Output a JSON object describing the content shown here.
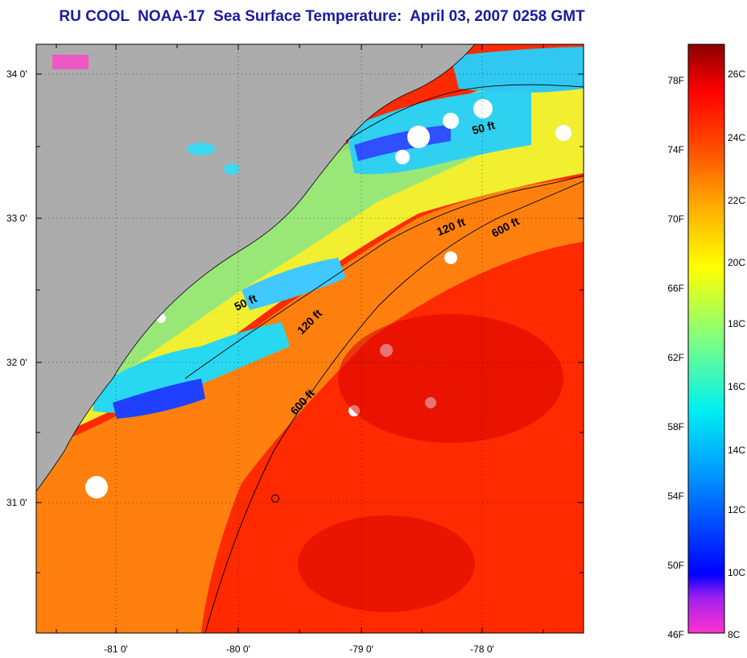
{
  "title": "RU COOL  NOAA-17  Sea Surface Temperature:  April 03, 2007 0258 GMT",
  "map": {
    "lat_ticks": [
      "34 0'",
      "33 0'",
      "32 0'",
      "31 0'"
    ],
    "lon_ticks": [
      "-81 0'",
      "-80 0'",
      "-79 0'",
      "-78 0'"
    ],
    "contour_labels": {
      "fifty_north": "50 ft",
      "onetwenty_north": "120 ft",
      "sixhundred_north": "600 ft",
      "fifty_south": "50 ft",
      "onetwenty_south": "120 ft",
      "sixhundred_south": "600 ft"
    },
    "colors": {
      "land": "#acacac",
      "cold": "#0000ff",
      "warm": "#ff1a00"
    }
  },
  "colorbar": {
    "fahrenheit": [
      "78F",
      "74F",
      "70F",
      "66F",
      "62F",
      "58F",
      "54F",
      "50F",
      "46F"
    ],
    "celsius": [
      "26C",
      "24C",
      "22C",
      "20C",
      "18C",
      "16C",
      "14C",
      "12C",
      "10C",
      "8C"
    ]
  }
}
